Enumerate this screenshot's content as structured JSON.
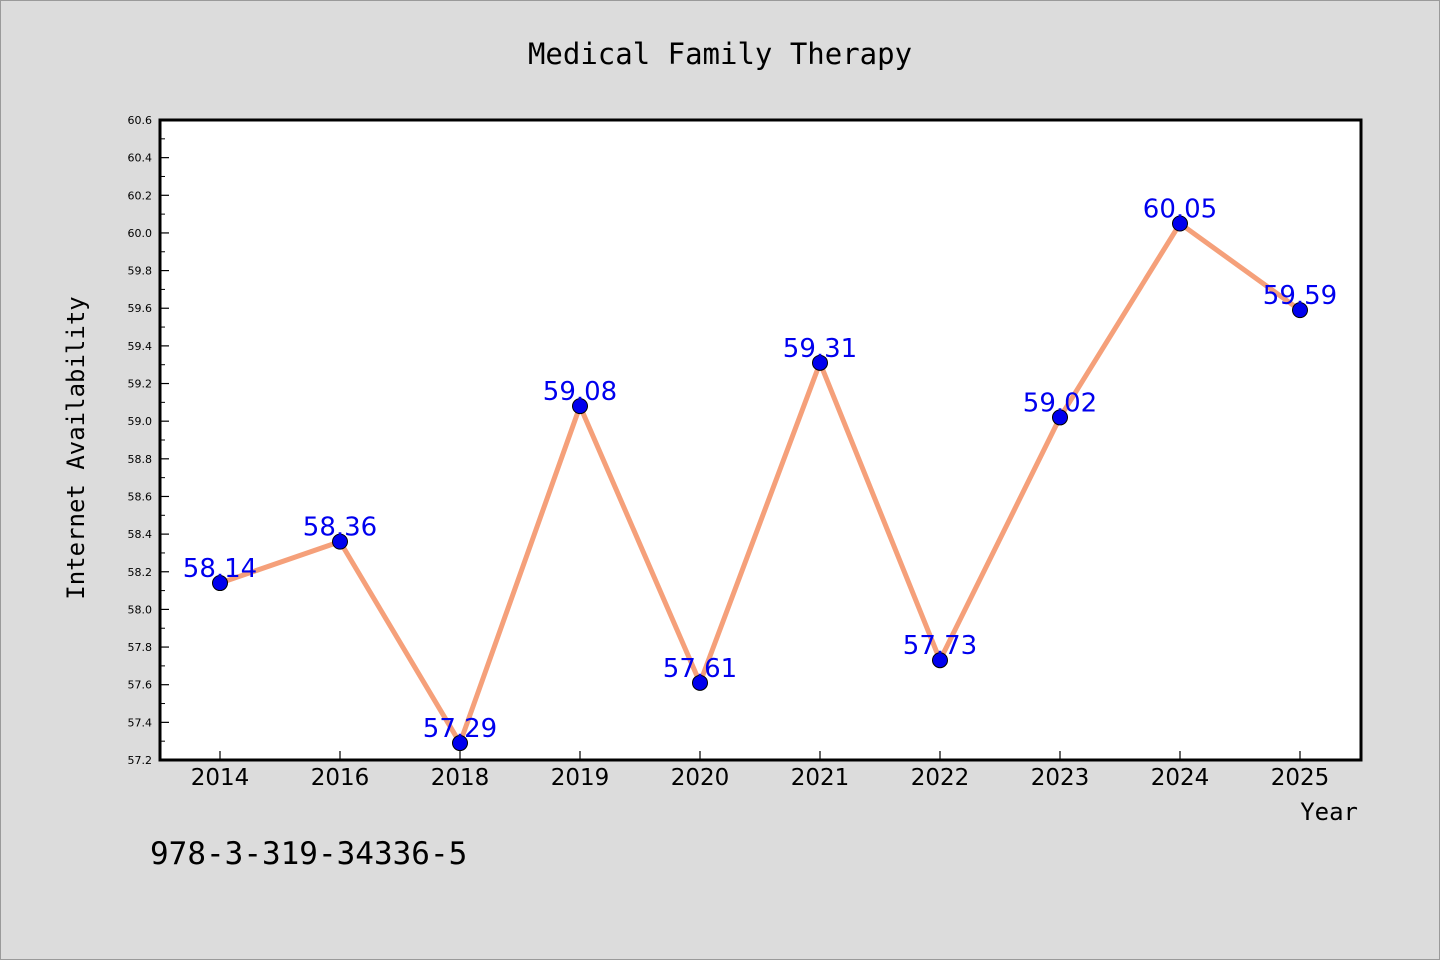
{
  "chart_data": {
    "type": "line",
    "title": "Medical Family Therapy",
    "xlabel": "Year",
    "ylabel": "Internet Availability",
    "categories": [
      "2014",
      "2016",
      "2018",
      "2019",
      "2020",
      "2021",
      "2022",
      "2023",
      "2024",
      "2025"
    ],
    "series": [
      {
        "values": [
          58.14,
          58.36,
          57.29,
          59.08,
          57.61,
          59.31,
          57.73,
          59.02,
          60.05,
          59.59
        ],
        "labels": [
          "58.14",
          "58.36",
          "57.29",
          "59.08",
          "57.61",
          "59.31",
          "57.73",
          "59.02",
          "60.05",
          "59.59"
        ],
        "line_color": "#f5a07a",
        "marker_color": "#0000ee",
        "label_color": "#0000ee"
      }
    ],
    "ylim": [
      57.2,
      60.6
    ],
    "yticks": [
      "57.2",
      "57.4",
      "57.6",
      "57.8",
      "58.0",
      "58.2",
      "58.4",
      "58.6",
      "58.8",
      "59.0",
      "59.2",
      "59.4",
      "59.6",
      "59.8",
      "60.0",
      "60.2",
      "60.4",
      "60.6"
    ],
    "grid": false,
    "legend": "none"
  },
  "footer": {
    "isbn": "978-3-319-34336-5"
  },
  "colors": {
    "background": "#dcdcdc",
    "plot_area": "#ffffff",
    "axis": "#000000"
  }
}
